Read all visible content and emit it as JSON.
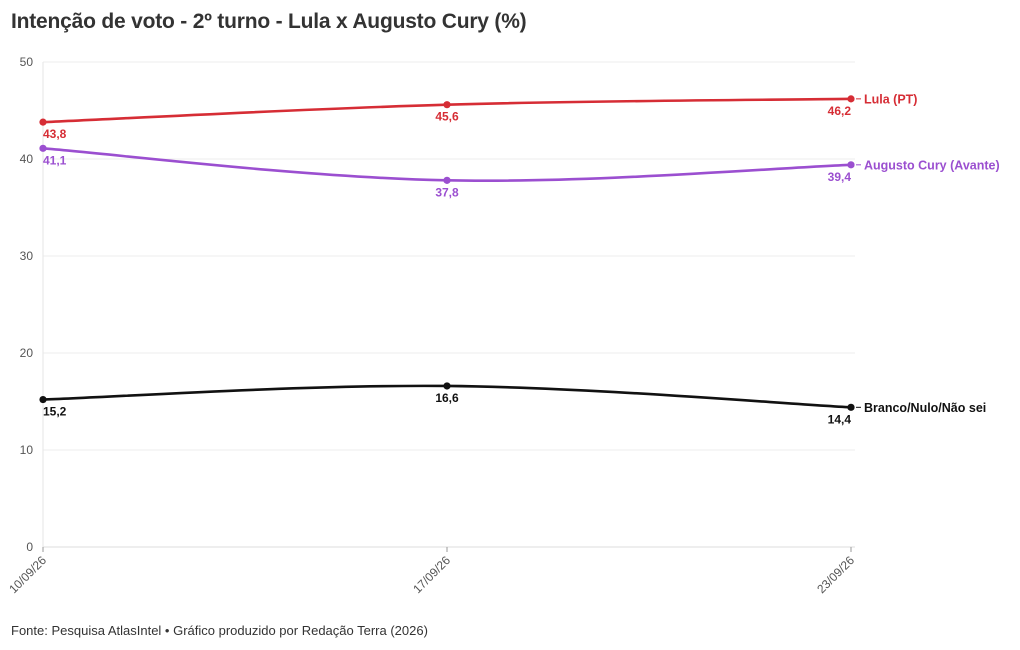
{
  "title": "Intenção de voto - 2º turno - Lula x Augusto Cury (%)",
  "source": "Fonte: Pesquisa AtlasIntel • Gráfico produzido por Redação Terra (2026)",
  "chart_data": {
    "type": "line",
    "title": "Intenção de voto - 2º turno - Lula x Augusto Cury (%)",
    "x": [
      "10/09/26",
      "17/09/26",
      "23/09/26"
    ],
    "ylim": [
      0,
      50
    ],
    "yticks": [
      0,
      10,
      20,
      30,
      40,
      50
    ],
    "grid": true,
    "legend": "direct labels at line ends (right)",
    "series": [
      {
        "name": "Lula (PT)",
        "color": "#d62d35",
        "values": [
          43.8,
          45.6,
          46.2
        ],
        "labels": [
          "43,8",
          "45,6",
          "46,2"
        ]
      },
      {
        "name": "Augusto Cury (Avante)",
        "color": "#9b4fd0",
        "values": [
          41.1,
          37.8,
          39.4
        ],
        "labels": [
          "41,1",
          "37,8",
          "39,4"
        ]
      },
      {
        "name": "Branco/Nulo/Não sei",
        "color": "#111111",
        "values": [
          15.2,
          16.6,
          14.4
        ],
        "labels": [
          "15,2",
          "16,6",
          "14,4"
        ]
      }
    ]
  }
}
